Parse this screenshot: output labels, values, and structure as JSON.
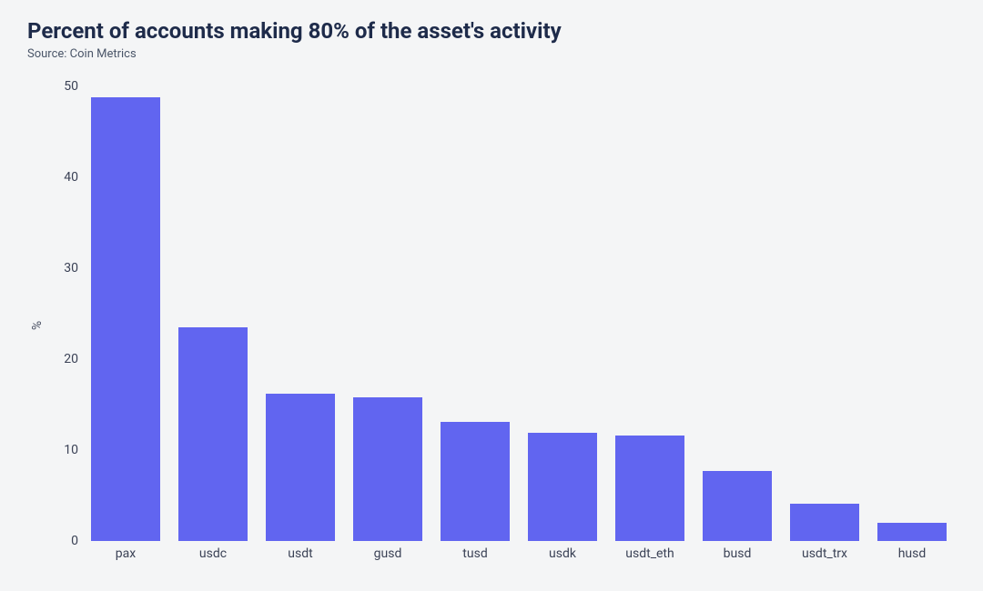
{
  "title": "Percent of accounts making 80% of the asset's activity",
  "source": "Source: Coin Metrics",
  "chart": {
    "type": "bar",
    "categories": [
      "pax",
      "usdc",
      "usdt",
      "gusd",
      "tusd",
      "usdk",
      "usdt_eth",
      "busd",
      "usdt_trx",
      "husd"
    ],
    "values": [
      48.8,
      23.5,
      16.2,
      15.8,
      13.1,
      11.9,
      11.6,
      7.7,
      4.1,
      2.0
    ],
    "bar_color": "#6165f0",
    "ylabel": "%",
    "ylim": [
      0,
      50
    ],
    "ytick_step": 10,
    "bar_width_ratio": 0.8,
    "background_color": "#f4f5f6",
    "title_color": "#1e2b4a",
    "text_color": "#3b4256",
    "title_fontsize": 24,
    "label_fontsize": 13,
    "tick_fontsize": 14
  }
}
